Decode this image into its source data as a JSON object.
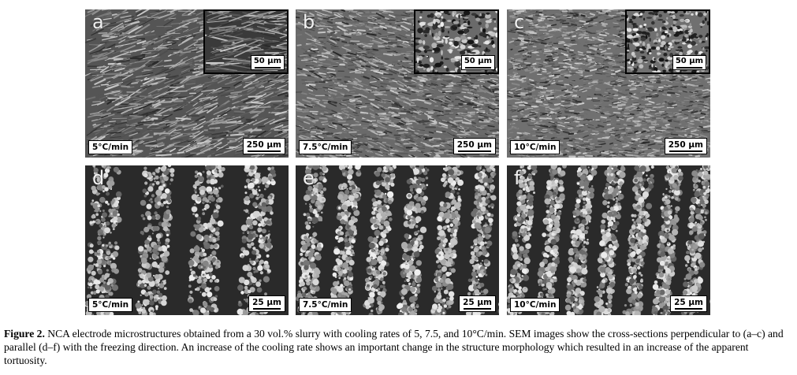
{
  "figure": {
    "panels": [
      {
        "letter": "a",
        "rate": "5°C/min",
        "scale": "250 µm",
        "inset_scale": "50 µm"
      },
      {
        "letter": "b",
        "rate": "7.5°C/min",
        "scale": "250 µm",
        "inset_scale": "50 µm"
      },
      {
        "letter": "c",
        "rate": "10°C/min",
        "scale": "250 µm",
        "inset_scale": "50 µm"
      },
      {
        "letter": "d",
        "rate": "5°C/min",
        "scale": "25 µm"
      },
      {
        "letter": "e",
        "rate": "7.5°C/min",
        "scale": "25 µm"
      },
      {
        "letter": "f",
        "rate": "10°C/min",
        "scale": "25 µm"
      }
    ],
    "caption": {
      "label": "Figure 2.",
      "text": " NCA electrode microstructures obtained from a 30 vol.% slurry with cooling rates of 5, 7.5, and 10°C/min. SEM images show the cross-sections perpendicular to (a–c) and parallel (d–f) with the freezing direction. An increase of the cooling rate shows an important change in the structure morphology which resulted in an increase of the apparent tortuosity."
    }
  }
}
